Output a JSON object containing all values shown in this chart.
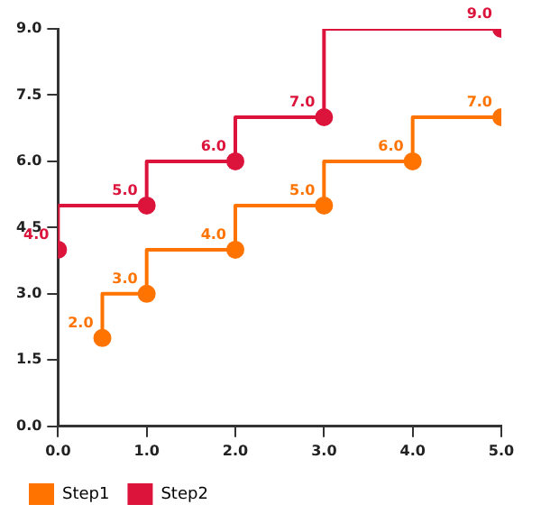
{
  "chart_data": {
    "type": "step",
    "series": [
      {
        "name": "Step1",
        "color": "#ff7300",
        "x": [
          0.5,
          1,
          2,
          3,
          4,
          5
        ],
        "values": [
          2,
          3,
          4,
          5,
          6,
          7
        ],
        "value_labels": [
          "2.0",
          "3.0",
          "4.0",
          "5.0",
          "6.0",
          "7.0"
        ]
      },
      {
        "name": "Step2",
        "color": "#dc143c",
        "x": [
          0,
          1,
          2,
          3,
          5
        ],
        "values": [
          4,
          5,
          6,
          7,
          9
        ],
        "value_labels": [
          "4.0",
          "5.0",
          "6.0",
          "7.0",
          "9.0"
        ]
      }
    ],
    "xlim": [
      0,
      5
    ],
    "xticks": [
      {
        "value": 0,
        "label": "0.0"
      },
      {
        "value": 1,
        "label": "1.0"
      },
      {
        "value": 2,
        "label": "2.0"
      },
      {
        "value": 3,
        "label": "3.0"
      },
      {
        "value": 4,
        "label": "4.0"
      },
      {
        "value": 5,
        "label": "5.0"
      }
    ],
    "ylim": [
      0,
      9
    ],
    "yticks": [
      {
        "value": 0,
        "label": "0.0"
      },
      {
        "value": 1.5,
        "label": "1.5"
      },
      {
        "value": 3,
        "label": "3.0"
      },
      {
        "value": 4.5,
        "label": "4.5"
      },
      {
        "value": 6,
        "label": "6.0"
      },
      {
        "value": 7.5,
        "label": "7.5"
      },
      {
        "value": 9,
        "label": "9.0"
      }
    ],
    "grid": false,
    "legend": "bottom left",
    "marker": "circle",
    "line_style": "solid"
  }
}
